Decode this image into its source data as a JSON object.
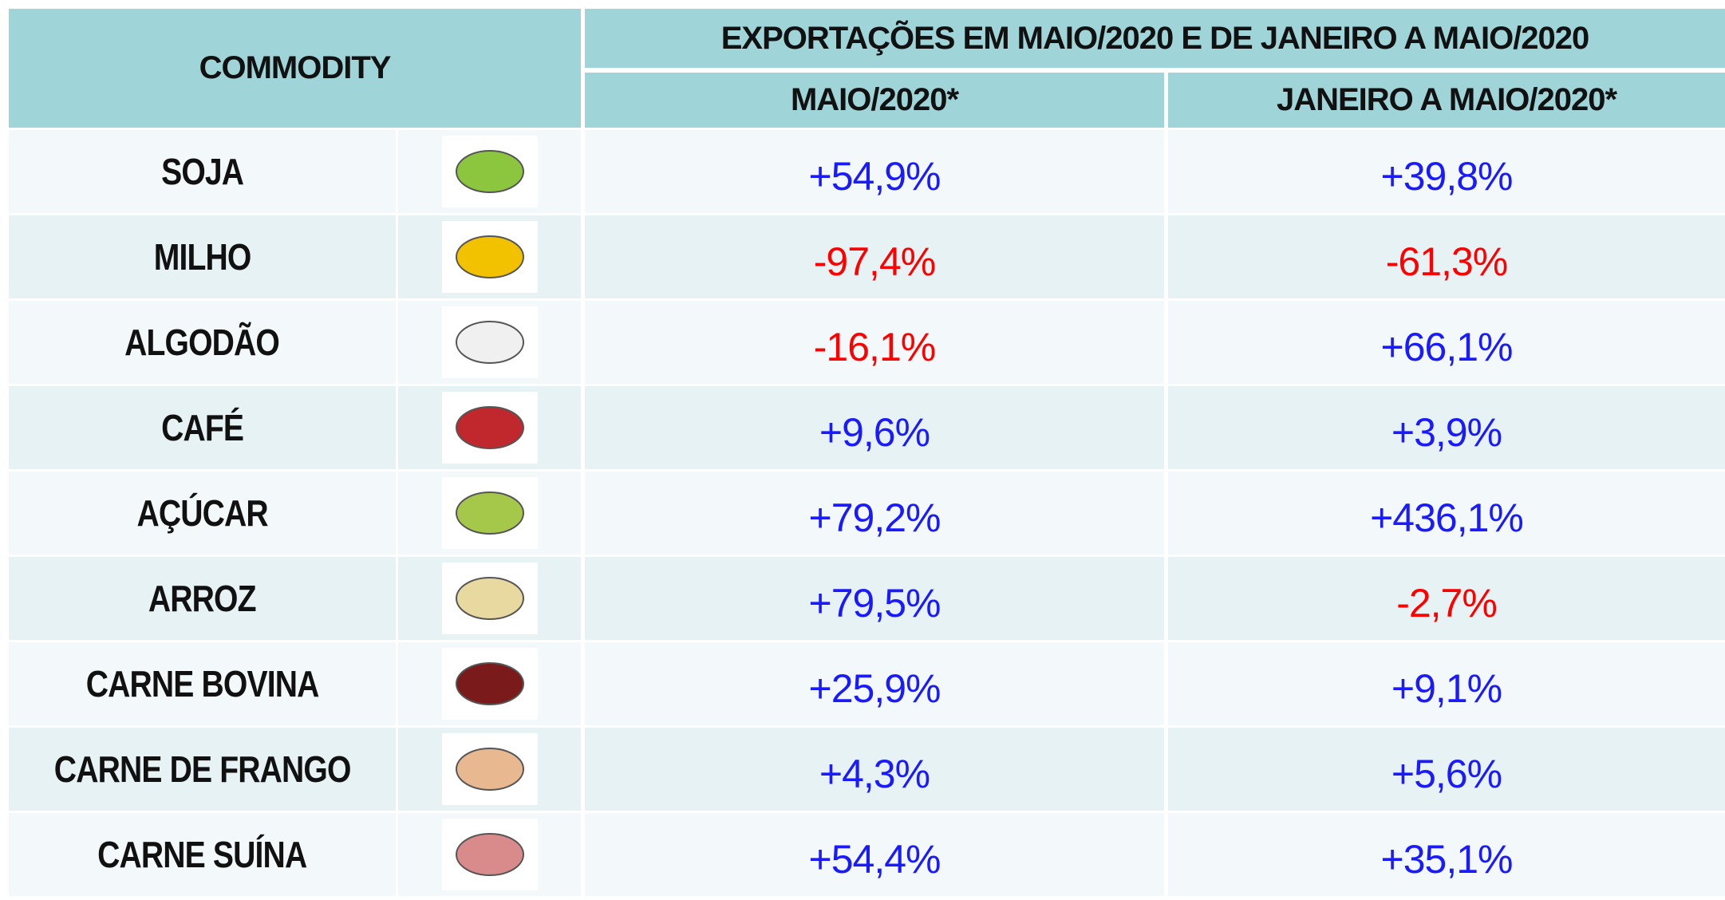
{
  "table": {
    "header": {
      "commodity": "COMMODITY",
      "group": "EXPORTAÇÕES EM MAIO/2020 E DE JANEIRO A MAIO/2020",
      "columns": [
        "MAIO/2020*",
        "JANEIRO A MAIO/2020*"
      ]
    },
    "rows": [
      [
        "SOJA",
        "+54,9%",
        "+39,8%"
      ],
      [
        "MILHO",
        "-97,4%",
        "-61,3%"
      ],
      [
        "ALGODÃO",
        "-16,1%",
        "+66,1%"
      ],
      [
        "CAFÉ",
        "+9,6%",
        "+3,9%"
      ],
      [
        "AÇÚCAR",
        "+79,2%",
        "+436,1%"
      ],
      [
        "ARROZ",
        "+79,5%",
        "-2,7%"
      ],
      [
        "CARNE BOVINA",
        "+25,9%",
        "+9,1%"
      ],
      [
        "CARNE DE FRANGO",
        "+4,3%",
        "+5,6%"
      ],
      [
        "CARNE SUÍNA",
        "+54,4%",
        "+35,1%"
      ]
    ]
  }
}
